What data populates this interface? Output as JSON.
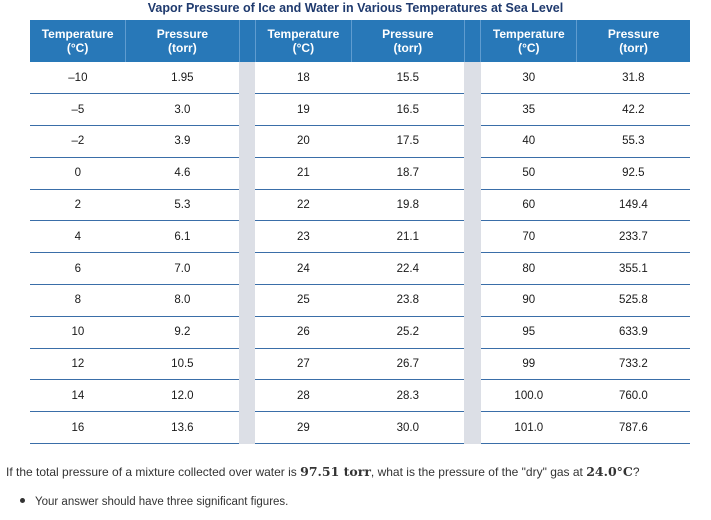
{
  "table": {
    "caption": "Vapor Pressure of Ice and Water in Various Temperatures at Sea Level",
    "headers": [
      [
        "Temperature",
        "(°C)"
      ],
      [
        "Pressure",
        "(torr)"
      ],
      [
        "Temperature",
        "(°C)"
      ],
      [
        "Pressure",
        "(torr)"
      ],
      [
        "Temperature",
        "(°C)"
      ],
      [
        "Pressure",
        "(torr)"
      ]
    ],
    "rows": [
      [
        "–10",
        "1.95",
        "18",
        "15.5",
        "30",
        "31.8"
      ],
      [
        "–5",
        "3.0",
        "19",
        "16.5",
        "35",
        "42.2"
      ],
      [
        "–2",
        "3.9",
        "20",
        "17.5",
        "40",
        "55.3"
      ],
      [
        "0",
        "4.6",
        "21",
        "18.7",
        "50",
        "92.5"
      ],
      [
        "2",
        "5.3",
        "22",
        "19.8",
        "60",
        "149.4"
      ],
      [
        "4",
        "6.1",
        "23",
        "21.1",
        "70",
        "233.7"
      ],
      [
        "6",
        "7.0",
        "24",
        "22.4",
        "80",
        "355.1"
      ],
      [
        "8",
        "8.0",
        "25",
        "23.8",
        "90",
        "525.8"
      ],
      [
        "10",
        "9.2",
        "26",
        "25.2",
        "95",
        "633.9"
      ],
      [
        "12",
        "10.5",
        "27",
        "26.7",
        "99",
        "733.2"
      ],
      [
        "14",
        "12.0",
        "28",
        "28.3",
        "100.0",
        "760.0"
      ],
      [
        "16",
        "13.6",
        "29",
        "30.0",
        "101.0",
        "787.6"
      ]
    ]
  },
  "question": {
    "part1": "If the total pressure of a mixture collected over water is ",
    "value1": "97.51 torr",
    "part2": ", what is the pressure of the \"dry\" gas at ",
    "value2": "24.0°C",
    "part3": "?"
  },
  "bullets": [
    "Your answer should have three significant figures."
  ],
  "colors": {
    "header_bg": "#2878b8",
    "caption": "#1f3a6e",
    "gap": "#dcdfe6",
    "row_line": "#3a6ea8"
  }
}
